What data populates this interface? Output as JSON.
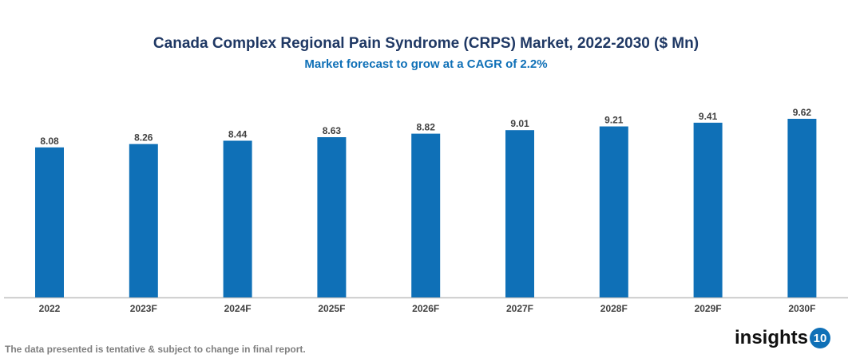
{
  "chart_data": {
    "type": "bar",
    "title": "Canada Complex Regional Pain Syndrome (CRPS) Market, 2022-2030 ($ Mn)",
    "subtitle": "Market forecast to grow at a CAGR of 2.2%",
    "categories": [
      "2022",
      "2023F",
      "2024F",
      "2025F",
      "2026F",
      "2027F",
      "2028F",
      "2029F",
      "2030F"
    ],
    "values": [
      8.08,
      8.26,
      8.44,
      8.63,
      8.82,
      9.01,
      9.21,
      9.41,
      9.62
    ],
    "xlabel": "",
    "ylabel": "",
    "ylim": [
      0,
      9.62
    ],
    "grid": false,
    "bar_color": "#0f70b7"
  },
  "footer": {
    "note": "The data presented is tentative & subject to change in final report.",
    "logo_text": "insights",
    "logo_number": "10"
  }
}
